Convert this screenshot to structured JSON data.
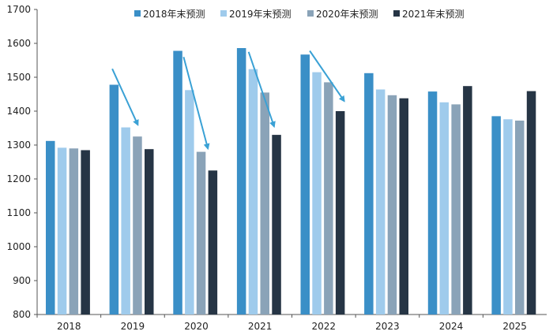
{
  "chart_data": {
    "type": "bar",
    "title": "",
    "xlabel": "",
    "ylabel": "",
    "categories": [
      "2018",
      "2019",
      "2020",
      "2021",
      "2022",
      "2023",
      "2024",
      "2025"
    ],
    "ylim": [
      800,
      1700
    ],
    "yticks": [
      "1700",
      "1600",
      "1500",
      "1400",
      "1300",
      "1200",
      "1100",
      "1000",
      "900",
      "800"
    ],
    "legend_position": "top",
    "series": [
      {
        "name": "2018年末预测",
        "color": "#3a8fc7",
        "values": [
          1312,
          1478,
          1578,
          1586,
          1567,
          1512,
          1458,
          1385
        ]
      },
      {
        "name": "2019年末预测",
        "color": "#9fcbec",
        "values": [
          1292,
          1352,
          1462,
          1524,
          1515,
          1464,
          1426,
          1376
        ]
      },
      {
        "name": "2020年末预测",
        "color": "#8aa3b8",
        "values": [
          1290,
          1325,
          1280,
          1455,
          1485,
          1447,
          1420,
          1372
        ]
      },
      {
        "name": "2021年末预测",
        "color": "#263545",
        "values": [
          1285,
          1288,
          1225,
          1330,
          1400,
          1438,
          1474,
          1459
        ]
      }
    ],
    "annotations": [
      {
        "type": "arrow",
        "color": "#3aa1d5",
        "from": {
          "x": "2019",
          "y": 1525
        },
        "to": {
          "x": "2019",
          "y": 1360
        }
      },
      {
        "type": "arrow",
        "color": "#3aa1d5",
        "from": {
          "x": "2020",
          "y": 1560
        },
        "to": {
          "x": "2020",
          "y": 1290
        }
      },
      {
        "type": "arrow",
        "color": "#3aa1d5",
        "from": {
          "x": "2021",
          "y": 1575
        },
        "to": {
          "x": "2021",
          "y": 1355
        }
      },
      {
        "type": "arrow",
        "color": "#3aa1d5",
        "from": {
          "x": "2022",
          "y": 1578
        },
        "to": {
          "x": "2022",
          "y": 1430
        }
      }
    ]
  }
}
